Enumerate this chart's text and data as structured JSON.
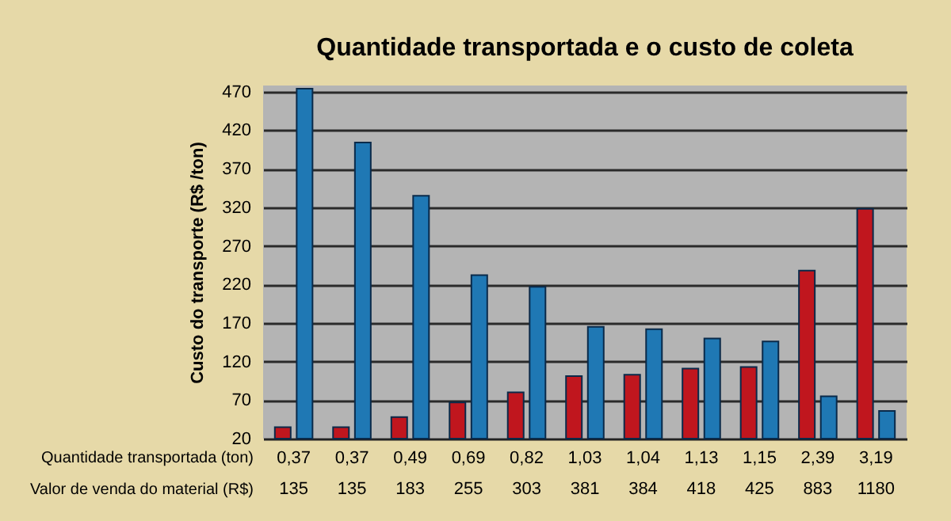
{
  "chart_data": {
    "type": "bar",
    "title": "Quantidade transportada e o custo de coleta",
    "ylabel": "Custo do transporte (R$ /ton)",
    "xlabel": "Quantidade transportada (ton)",
    "categories": [
      "0,37",
      "0,37",
      "0,49",
      "0,69",
      "0,82",
      "1,03",
      "1,04",
      "1,13",
      "1,15",
      "2,39",
      "3,19"
    ],
    "series": [
      {
        "color": "#c0161e",
        "values": [
          35,
          35,
          48,
          67,
          80,
          101,
          103,
          111,
          113,
          238,
          318
        ]
      },
      {
        "color": "#1f78b4",
        "values": [
          474,
          404,
          335,
          232,
          217,
          165,
          162,
          150,
          146,
          75,
          56
        ]
      }
    ],
    "ylim": [
      20,
      478
    ],
    "yticks": [
      20,
      70,
      120,
      170,
      220,
      270,
      320,
      370,
      420,
      470
    ],
    "grid": "y",
    "annotations": [
      "Valor de venda do material (R$)",
      "135",
      "135",
      "183",
      "255",
      "303",
      "381",
      "384",
      "418",
      "425",
      "883",
      "1180"
    ]
  }
}
